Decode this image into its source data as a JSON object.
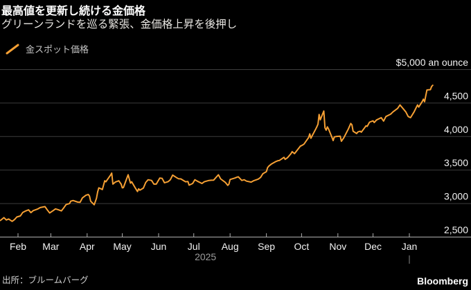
{
  "header": {
    "title": "最高値を更新し続ける金価格",
    "subtitle": "グリーンランドを巡る緊張、金価格上昇を後押し"
  },
  "legend": {
    "marker": "orange-slash",
    "label": "金スポット価格",
    "color": "#f6a034"
  },
  "chart_data": {
    "type": "line",
    "title": "最高値を更新し続ける金価格",
    "subtitle": "グリーンランドを巡る緊張、金価格上昇を後押し",
    "ylabel": "",
    "xlabel": "",
    "ylim": [
      2500,
      5000
    ],
    "grid": true,
    "legend_position": "top-left",
    "y_axis_side": "right",
    "y_top_label": "$5,000 an ounce",
    "yticks": [
      {
        "value": 2500,
        "label": "2,500"
      },
      {
        "value": 3000,
        "label": "3,000"
      },
      {
        "value": 3500,
        "label": "3,500"
      },
      {
        "value": 4000,
        "label": "4,000"
      },
      {
        "value": 4500,
        "label": "4,500"
      },
      {
        "value": 5000,
        "label": "$5,000 an ounce"
      }
    ],
    "xticks": [
      {
        "date": "2025-02-01",
        "label": "Feb"
      },
      {
        "date": "2025-03-01",
        "label": "Mar"
      },
      {
        "date": "2025-04-01",
        "label": "Apr"
      },
      {
        "date": "2025-05-01",
        "label": "May"
      },
      {
        "date": "2025-06-01",
        "label": "Jun"
      },
      {
        "date": "2025-07-01",
        "label": "Jul"
      },
      {
        "date": "2025-08-01",
        "label": "Aug"
      },
      {
        "date": "2025-09-01",
        "label": "Sep"
      },
      {
        "date": "2025-10-01",
        "label": "Oct"
      },
      {
        "date": "2025-11-01",
        "label": "Nov"
      },
      {
        "date": "2025-12-01",
        "label": "Dec"
      },
      {
        "date": "2026-01-01",
        "label": "Jan",
        "year_marker": true
      }
    ],
    "year_label": {
      "date": "2025-07-11",
      "label": "2025"
    },
    "colors": {
      "line": "#f6a034",
      "background": "#000000",
      "gridline": "#3d3d3d",
      "axis_line": "#b0b0b0",
      "tick": "#b0b0b0",
      "axis_label": "#f2f2f2",
      "muted_label": "#9c9c9c",
      "year_tick": "#8a8a8a"
    },
    "series": [
      {
        "name": "金スポット価格",
        "unit": "USD per ounce",
        "color": "#f6a034",
        "points": [
          [
            "2025-01-17",
            2748
          ],
          [
            "2025-01-20",
            2790
          ],
          [
            "2025-01-22",
            2755
          ],
          [
            "2025-01-24",
            2770
          ],
          [
            "2025-01-27",
            2735
          ],
          [
            "2025-01-29",
            2760
          ],
          [
            "2025-01-31",
            2800
          ],
          [
            "2025-02-03",
            2815
          ],
          [
            "2025-02-05",
            2867
          ],
          [
            "2025-02-07",
            2885
          ],
          [
            "2025-02-10",
            2906
          ],
          [
            "2025-02-12",
            2865
          ],
          [
            "2025-02-14",
            2895
          ],
          [
            "2025-02-18",
            2920
          ],
          [
            "2025-02-20",
            2940
          ],
          [
            "2025-02-24",
            2955
          ],
          [
            "2025-02-26",
            2905
          ],
          [
            "2025-02-28",
            2860
          ],
          [
            "2025-03-03",
            2895
          ],
          [
            "2025-03-05",
            2920
          ],
          [
            "2025-03-07",
            2910
          ],
          [
            "2025-03-10",
            2890
          ],
          [
            "2025-03-12",
            2935
          ],
          [
            "2025-03-14",
            2985
          ],
          [
            "2025-03-17",
            3000
          ],
          [
            "2025-03-18",
            3035
          ],
          [
            "2025-03-20",
            3045
          ],
          [
            "2025-03-24",
            3022
          ],
          [
            "2025-03-26",
            3020
          ],
          [
            "2025-03-28",
            3085
          ],
          [
            "2025-03-31",
            3124
          ],
          [
            "2025-04-02",
            3135
          ],
          [
            "2025-04-03",
            3112
          ],
          [
            "2025-04-04",
            3035
          ],
          [
            "2025-04-07",
            2982
          ],
          [
            "2025-04-09",
            3080
          ],
          [
            "2025-04-10",
            3175
          ],
          [
            "2025-04-11",
            3235
          ],
          [
            "2025-04-14",
            3210
          ],
          [
            "2025-04-16",
            3340
          ],
          [
            "2025-04-17",
            3325
          ],
          [
            "2025-04-21",
            3425
          ],
          [
            "2025-04-22",
            3455
          ],
          [
            "2025-04-23",
            3290
          ],
          [
            "2025-04-25",
            3320
          ],
          [
            "2025-04-28",
            3340
          ],
          [
            "2025-04-30",
            3290
          ],
          [
            "2025-05-01",
            3235
          ],
          [
            "2025-05-02",
            3240
          ],
          [
            "2025-05-06",
            3430
          ],
          [
            "2025-05-07",
            3365
          ],
          [
            "2025-05-08",
            3305
          ],
          [
            "2025-05-09",
            3325
          ],
          [
            "2025-05-12",
            3235
          ],
          [
            "2025-05-14",
            3180
          ],
          [
            "2025-05-15",
            3220
          ],
          [
            "2025-05-16",
            3200
          ],
          [
            "2025-05-19",
            3230
          ],
          [
            "2025-05-21",
            3315
          ],
          [
            "2025-05-23",
            3355
          ],
          [
            "2025-05-26",
            3345
          ],
          [
            "2025-05-28",
            3290
          ],
          [
            "2025-05-30",
            3290
          ],
          [
            "2025-06-02",
            3380
          ],
          [
            "2025-06-04",
            3375
          ],
          [
            "2025-06-06",
            3310
          ],
          [
            "2025-06-09",
            3325
          ],
          [
            "2025-06-11",
            3355
          ],
          [
            "2025-06-13",
            3425
          ],
          [
            "2025-06-16",
            3390
          ],
          [
            "2025-06-18",
            3370
          ],
          [
            "2025-06-20",
            3368
          ],
          [
            "2025-06-24",
            3325
          ],
          [
            "2025-06-26",
            3330
          ],
          [
            "2025-06-27",
            3275
          ],
          [
            "2025-06-30",
            3300
          ],
          [
            "2025-07-02",
            3355
          ],
          [
            "2025-07-04",
            3335
          ],
          [
            "2025-07-08",
            3300
          ],
          [
            "2025-07-10",
            3325
          ],
          [
            "2025-07-14",
            3345
          ],
          [
            "2025-07-16",
            3348
          ],
          [
            "2025-07-18",
            3350
          ],
          [
            "2025-07-22",
            3430
          ],
          [
            "2025-07-24",
            3368
          ],
          [
            "2025-07-28",
            3315
          ],
          [
            "2025-07-30",
            3272
          ],
          [
            "2025-07-31",
            3290
          ],
          [
            "2025-08-01",
            3360
          ],
          [
            "2025-08-05",
            3380
          ],
          [
            "2025-08-07",
            3395
          ],
          [
            "2025-08-08",
            3400
          ],
          [
            "2025-08-11",
            3345
          ],
          [
            "2025-08-13",
            3355
          ],
          [
            "2025-08-15",
            3335
          ],
          [
            "2025-08-19",
            3320
          ],
          [
            "2025-08-21",
            3340
          ],
          [
            "2025-08-25",
            3365
          ],
          [
            "2025-08-27",
            3390
          ],
          [
            "2025-08-29",
            3445
          ],
          [
            "2025-09-01",
            3476
          ],
          [
            "2025-09-02",
            3535
          ],
          [
            "2025-09-03",
            3558
          ],
          [
            "2025-09-05",
            3587
          ],
          [
            "2025-09-09",
            3627
          ],
          [
            "2025-09-11",
            3640
          ],
          [
            "2025-09-12",
            3643
          ],
          [
            "2025-09-16",
            3690
          ],
          [
            "2025-09-17",
            3660
          ],
          [
            "2025-09-19",
            3685
          ],
          [
            "2025-09-22",
            3745
          ],
          [
            "2025-09-23",
            3775
          ],
          [
            "2025-09-25",
            3745
          ],
          [
            "2025-09-29",
            3835
          ],
          [
            "2025-09-30",
            3858
          ],
          [
            "2025-10-01",
            3865
          ],
          [
            "2025-10-03",
            3886
          ],
          [
            "2025-10-06",
            3960
          ],
          [
            "2025-10-07",
            3983
          ],
          [
            "2025-10-08",
            4040
          ],
          [
            "2025-10-09",
            3975
          ],
          [
            "2025-10-10",
            4010
          ],
          [
            "2025-10-13",
            4110
          ],
          [
            "2025-10-14",
            4145
          ],
          [
            "2025-10-15",
            4185
          ],
          [
            "2025-10-16",
            4330
          ],
          [
            "2025-10-17",
            4250
          ],
          [
            "2025-10-20",
            4381
          ],
          [
            "2025-10-21",
            4130
          ],
          [
            "2025-10-22",
            4095
          ],
          [
            "2025-10-23",
            4145
          ],
          [
            "2025-10-24",
            4115
          ],
          [
            "2025-10-27",
            3985
          ],
          [
            "2025-10-28",
            3940
          ],
          [
            "2025-10-29",
            3995
          ],
          [
            "2025-10-31",
            4002
          ],
          [
            "2025-11-03",
            4005
          ],
          [
            "2025-11-04",
            3930
          ],
          [
            "2025-11-06",
            3980
          ],
          [
            "2025-11-10",
            4115
          ],
          [
            "2025-11-12",
            4195
          ],
          [
            "2025-11-13",
            4175
          ],
          [
            "2025-11-14",
            4080
          ],
          [
            "2025-11-17",
            4045
          ],
          [
            "2025-11-18",
            4068
          ],
          [
            "2025-11-20",
            4080
          ],
          [
            "2025-11-21",
            4065
          ],
          [
            "2025-11-24",
            4135
          ],
          [
            "2025-11-25",
            4160
          ],
          [
            "2025-11-26",
            4152
          ],
          [
            "2025-11-28",
            4215
          ],
          [
            "2025-12-01",
            4235
          ],
          [
            "2025-12-02",
            4210
          ],
          [
            "2025-12-04",
            4248
          ],
          [
            "2025-12-08",
            4282
          ],
          [
            "2025-12-10",
            4231
          ],
          [
            "2025-12-12",
            4300
          ],
          [
            "2025-12-16",
            4334
          ],
          [
            "2025-12-18",
            4368
          ],
          [
            "2025-12-22",
            4420
          ],
          [
            "2025-12-24",
            4472
          ],
          [
            "2025-12-29",
            4368
          ],
          [
            "2025-12-31",
            4300
          ],
          [
            "2026-01-02",
            4282
          ],
          [
            "2026-01-05",
            4368
          ],
          [
            "2026-01-07",
            4437
          ],
          [
            "2026-01-08",
            4472
          ],
          [
            "2026-01-09",
            4440
          ],
          [
            "2026-01-12",
            4523
          ],
          [
            "2026-01-13",
            4558
          ],
          [
            "2026-01-14",
            4520
          ],
          [
            "2026-01-15",
            4610
          ],
          [
            "2026-01-16",
            4695
          ],
          [
            "2026-01-19",
            4700
          ],
          [
            "2026-01-20",
            4747
          ],
          [
            "2026-01-21",
            4765
          ]
        ]
      }
    ]
  },
  "footer": {
    "source": "出所：ブルームバーグ",
    "logo": "Bloomberg"
  }
}
